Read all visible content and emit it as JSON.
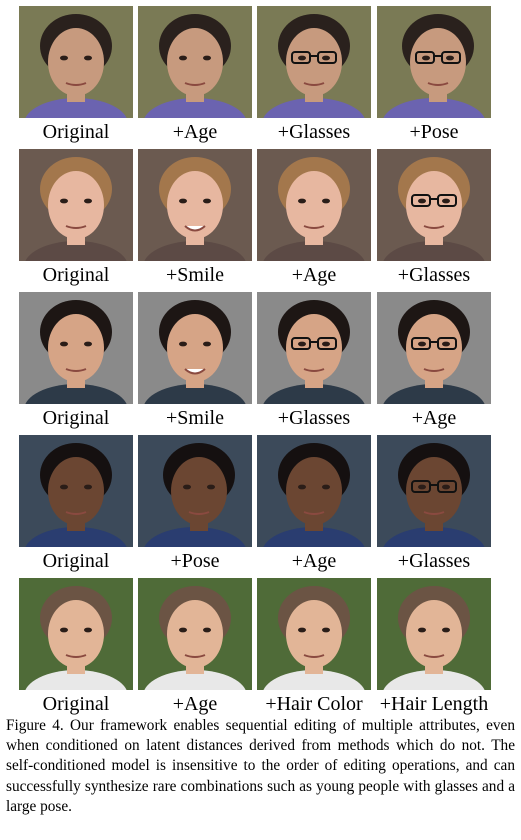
{
  "figure": {
    "rows": [
      {
        "labels": [
          "Original",
          "+Age",
          "+Glasses",
          "+Pose"
        ],
        "skin": "#c79a7e",
        "hair": "#2a211d",
        "bg": "#7a7a55",
        "shirt": "#6b63b0",
        "glasses": [
          false,
          false,
          true,
          true
        ]
      },
      {
        "labels": [
          "Original",
          "+Smile",
          "+Age",
          "+Glasses"
        ],
        "skin": "#e7b7a0",
        "hair": "#a3774c",
        "bg": "#6b5a50",
        "shirt": "#5c4a45",
        "glasses": [
          false,
          false,
          false,
          true
        ]
      },
      {
        "labels": [
          "Original",
          "+Smile",
          "+Glasses",
          "+Age"
        ],
        "skin": "#d6a486",
        "hair": "#1d1614",
        "bg": "#8a8a8a",
        "shirt": "#2d3a48",
        "glasses": [
          false,
          false,
          true,
          true
        ]
      },
      {
        "labels": [
          "Original",
          "+Pose",
          "+Age",
          "+Glasses"
        ],
        "skin": "#6b4632",
        "hair": "#151010",
        "bg": "#3c4a5a",
        "shirt": "#2a3d70",
        "glasses": [
          false,
          false,
          false,
          true
        ]
      },
      {
        "labels": [
          "Original",
          "+Age",
          "+Hair Color",
          "+Hair Length"
        ],
        "skin": "#e2b597",
        "hair": "#6b5444",
        "bg": "#4f6b38",
        "shirt": "#e8e8e8",
        "glasses": [
          false,
          false,
          false,
          false
        ]
      }
    ],
    "caption": "Figure 4. Our framework enables sequential editing of multiple attributes, even when conditioned on latent distances derived from methods which do not. The self-conditioned model is insensitive to the order of editing operations, and can successfully synthesize rare combinations such as young people with glasses and a large pose."
  }
}
